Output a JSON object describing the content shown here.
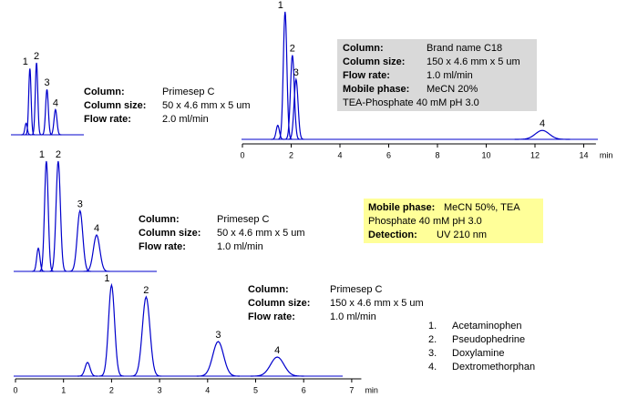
{
  "chart_data": [
    {
      "type": "line",
      "color": "#0000cc",
      "x": [
        0.16,
        0.2,
        0.27,
        0.38,
        0.47
      ],
      "values": [
        16,
        92,
        100,
        63,
        35
      ],
      "peak_labels": [
        null,
        "1",
        "2",
        "3",
        "4"
      ],
      "conditions": [
        {
          "label": "Column:",
          "value": "Primesep C"
        },
        {
          "label": "Column size:",
          "value": "50 x 4.6 mm x 5 um"
        },
        {
          "label": "Flow rate:",
          "value": "2.0 ml/min"
        }
      ]
    },
    {
      "type": "line",
      "color": "#0000cc",
      "x": [
        0.52,
        0.69,
        0.94,
        1.4,
        1.75
      ],
      "values": [
        21,
        100,
        100,
        55,
        33
      ],
      "peak_labels": [
        null,
        "1",
        "2",
        "3",
        "4"
      ],
      "conditions": [
        {
          "label": "Column:",
          "value": "Primesep C"
        },
        {
          "label": "Column size:",
          "value": "50 x 4.6 mm x 5 um"
        },
        {
          "label": "Flow rate:",
          "value": "1.0 ml/min"
        }
      ]
    },
    {
      "type": "line",
      "color": "#0000cc",
      "x": [
        1.5,
        2.0,
        2.72,
        4.22,
        5.45
      ],
      "values": [
        15,
        100,
        87,
        38,
        21
      ],
      "peak_labels": [
        null,
        "1",
        "2",
        "3",
        "4"
      ],
      "xlim": [
        0,
        7.2
      ],
      "xticks": [
        0,
        1,
        2,
        3,
        4,
        5,
        6,
        7
      ],
      "xlabel": "min",
      "conditions": [
        {
          "label": "Column:",
          "value": "Primesep C"
        },
        {
          "label": "Column size:",
          "value": "150 x 4.6 mm x 5 um"
        },
        {
          "label": "Flow rate:",
          "value": "1.0 ml/min"
        }
      ]
    },
    {
      "type": "line",
      "color": "#0000cc",
      "x": [
        1.45,
        1.75,
        2.05,
        2.2,
        12.3
      ],
      "values": [
        11,
        100,
        66,
        47,
        7
      ],
      "peak_labels": [
        null,
        "1",
        "2",
        "3",
        "4"
      ],
      "xlim": [
        0,
        14.5
      ],
      "xticks": [
        0,
        2,
        4,
        6,
        8,
        10,
        12,
        14
      ],
      "xlabel": "min",
      "conditions": [
        {
          "label": "Column:",
          "value": "Brand name C18"
        },
        {
          "label": "Column size:",
          "value": "150 x 4.6 mm x 5 um"
        },
        {
          "label": "Flow rate:",
          "value": "1.0 ml/min"
        },
        {
          "label": "Mobile phase:",
          "value": "MeCN 20%"
        }
      ],
      "note": "TEA-Phosphate  40 mM  pH 3.0"
    }
  ],
  "shared_conditions": [
    {
      "label": "Mobile phase:",
      "value": "MeCN 50%, TEA"
    },
    {
      "label": null,
      "value": "Phosphate  40 mM  pH 3.0"
    },
    {
      "label": "Detection:",
      "value": "UV 210 nm"
    }
  ],
  "compounds": [
    {
      "number": "1.",
      "name": "Acetaminophen"
    },
    {
      "number": "2.",
      "name": "Pseudophedrine"
    },
    {
      "number": "3.",
      "name": "Doxylamine"
    },
    {
      "number": "4.",
      "name": "Dextromethorphan"
    }
  ]
}
